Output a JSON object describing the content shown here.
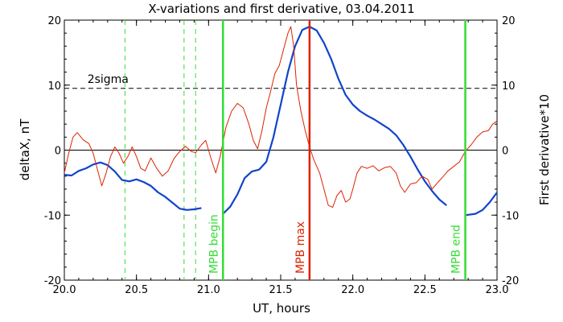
{
  "chart_data": {
    "type": "line",
    "title": "X-variations and first derivative, 03.04.2011",
    "xlabel": "UT, hours",
    "ylabel_left": "deltaX, nT",
    "ylabel_right": "First derivative*10",
    "xlim": [
      20.0,
      23.0
    ],
    "ylim": [
      -20,
      20
    ],
    "x_ticks": [
      "20.0",
      "20.5",
      "21.0",
      "21.5",
      "22.0",
      "22.5",
      "23.0"
    ],
    "y_ticks": [
      "-20",
      "-10",
      "0",
      "10",
      "20"
    ],
    "threshold": {
      "label": "2sigma",
      "value": 9.5
    },
    "annotations": [
      {
        "label": "MPB begin",
        "x": 21.1,
        "color": "#33dd33"
      },
      {
        "label": "MPB max",
        "x": 21.7,
        "color": "#dd2200"
      },
      {
        "label": "MPB end",
        "x": 22.78,
        "color": "#33dd33"
      }
    ],
    "dashed_markers": {
      "color": "#33dd33",
      "x": [
        20.42,
        20.83,
        20.91
      ]
    },
    "colors": {
      "deltaX": "#1144cc",
      "derivative": "#dd2200",
      "axis": "#000000"
    },
    "series": [
      {
        "axis": "left",
        "segments": [
          [
            [
              20.0,
              -3.8
            ],
            [
              20.05,
              -3.9
            ],
            [
              20.1,
              -3.2
            ],
            [
              20.15,
              -2.8
            ],
            [
              20.2,
              -2.2
            ],
            [
              20.25,
              -1.9
            ],
            [
              20.3,
              -2.3
            ],
            [
              20.35,
              -3.3
            ],
            [
              20.4,
              -4.6
            ],
            [
              20.45,
              -4.8
            ],
            [
              20.5,
              -4.5
            ],
            [
              20.55,
              -4.9
            ],
            [
              20.6,
              -5.5
            ],
            [
              20.65,
              -6.5
            ],
            [
              20.7,
              -7.2
            ],
            [
              20.75,
              -8.1
            ],
            [
              20.8,
              -9.0
            ],
            [
              20.85,
              -9.2
            ],
            [
              20.9,
              -9.1
            ],
            [
              20.95,
              -8.9
            ]
          ],
          [
            [
              21.1,
              -9.8
            ],
            [
              21.15,
              -8.7
            ],
            [
              21.2,
              -6.8
            ],
            [
              21.25,
              -4.3
            ],
            [
              21.3,
              -3.3
            ],
            [
              21.35,
              -3.0
            ],
            [
              21.4,
              -1.8
            ],
            [
              21.45,
              2.0
            ],
            [
              21.5,
              7.0
            ],
            [
              21.55,
              12.0
            ],
            [
              21.6,
              16.0
            ],
            [
              21.65,
              18.5
            ],
            [
              21.7,
              19.0
            ],
            [
              21.75,
              18.4
            ],
            [
              21.8,
              16.5
            ],
            [
              21.85,
              14.0
            ],
            [
              21.9,
              11.0
            ],
            [
              21.95,
              8.5
            ],
            [
              22.0,
              7.0
            ],
            [
              22.05,
              6.0
            ],
            [
              22.1,
              5.3
            ],
            [
              22.15,
              4.7
            ],
            [
              22.2,
              4.0
            ],
            [
              22.25,
              3.3
            ],
            [
              22.3,
              2.3
            ],
            [
              22.35,
              0.8
            ],
            [
              22.4,
              -1.0
            ],
            [
              22.45,
              -3.0
            ],
            [
              22.5,
              -4.8
            ],
            [
              22.55,
              -6.3
            ],
            [
              22.6,
              -7.6
            ],
            [
              22.65,
              -8.5
            ]
          ],
          [
            [
              22.78,
              -10.0
            ],
            [
              22.85,
              -9.8
            ],
            [
              22.9,
              -9.2
            ],
            [
              22.95,
              -8.0
            ],
            [
              23.0,
              -6.5
            ]
          ]
        ]
      },
      {
        "axis": "right",
        "segments": [
          [
            [
              20.0,
              -3.5
            ],
            [
              20.03,
              -0.5
            ],
            [
              20.06,
              2.0
            ],
            [
              20.09,
              2.7
            ],
            [
              20.13,
              1.6
            ],
            [
              20.17,
              1.0
            ],
            [
              20.2,
              -0.5
            ],
            [
              20.23,
              -3.0
            ],
            [
              20.26,
              -5.5
            ],
            [
              20.29,
              -3.5
            ],
            [
              20.32,
              -1.0
            ],
            [
              20.35,
              0.5
            ],
            [
              20.38,
              -0.5
            ],
            [
              20.41,
              -2.0
            ],
            [
              20.44,
              -1.0
            ],
            [
              20.47,
              0.5
            ],
            [
              20.5,
              -1.0
            ],
            [
              20.53,
              -2.8
            ],
            [
              20.56,
              -3.2
            ],
            [
              20.6,
              -1.2
            ],
            [
              20.64,
              -2.8
            ],
            [
              20.68,
              -4.0
            ],
            [
              20.72,
              -3.2
            ],
            [
              20.76,
              -1.3
            ],
            [
              20.8,
              -0.2
            ],
            [
              20.84,
              0.6
            ],
            [
              20.88,
              -0.2
            ],
            [
              20.91,
              -0.4
            ],
            [
              20.95,
              0.8
            ],
            [
              20.98,
              1.5
            ],
            [
              21.02,
              -1.5
            ],
            [
              21.05,
              -3.5
            ],
            [
              21.08,
              -1.0
            ],
            [
              21.12,
              3.5
            ],
            [
              21.16,
              6.0
            ],
            [
              21.2,
              7.2
            ],
            [
              21.24,
              6.5
            ],
            [
              21.28,
              4.0
            ],
            [
              21.31,
              1.5
            ],
            [
              21.34,
              0.2
            ],
            [
              21.37,
              3.0
            ],
            [
              21.4,
              6.5
            ],
            [
              21.43,
              9.0
            ],
            [
              21.46,
              11.8
            ],
            [
              21.49,
              13.0
            ],
            [
              21.52,
              15.5
            ],
            [
              21.55,
              18.0
            ],
            [
              21.57,
              19.0
            ],
            [
              21.59,
              16.0
            ],
            [
              21.61,
              10.0
            ],
            [
              21.64,
              6.0
            ],
            [
              21.67,
              3.0
            ],
            [
              21.7,
              0.5
            ],
            [
              21.73,
              -1.5
            ],
            [
              21.77,
              -3.5
            ],
            [
              21.8,
              -6.0
            ],
            [
              21.83,
              -8.5
            ],
            [
              21.86,
              -8.8
            ],
            [
              21.89,
              -7.0
            ],
            [
              21.92,
              -6.2
            ],
            [
              21.95,
              -8.0
            ],
            [
              21.98,
              -7.5
            ],
            [
              22.0,
              -6.0
            ],
            [
              22.03,
              -3.5
            ],
            [
              22.06,
              -2.5
            ],
            [
              22.1,
              -2.8
            ],
            [
              22.14,
              -2.4
            ],
            [
              22.18,
              -3.2
            ],
            [
              22.22,
              -2.7
            ],
            [
              22.26,
              -2.5
            ],
            [
              22.3,
              -3.5
            ],
            [
              22.33,
              -5.5
            ],
            [
              22.36,
              -6.5
            ],
            [
              22.4,
              -5.2
            ],
            [
              22.44,
              -5.0
            ],
            [
              22.48,
              -4.0
            ],
            [
              22.52,
              -4.5
            ],
            [
              22.55,
              -6.0
            ],
            [
              22.58,
              -5.2
            ],
            [
              22.62,
              -4.2
            ],
            [
              22.66,
              -3.2
            ],
            [
              22.7,
              -2.5
            ],
            [
              22.74,
              -1.8
            ],
            [
              22.78,
              -0.2
            ],
            [
              22.82,
              0.8
            ],
            [
              22.86,
              2.0
            ],
            [
              22.9,
              2.8
            ],
            [
              22.94,
              3.0
            ],
            [
              22.97,
              4.0
            ],
            [
              23.0,
              4.5
            ]
          ]
        ]
      }
    ]
  }
}
